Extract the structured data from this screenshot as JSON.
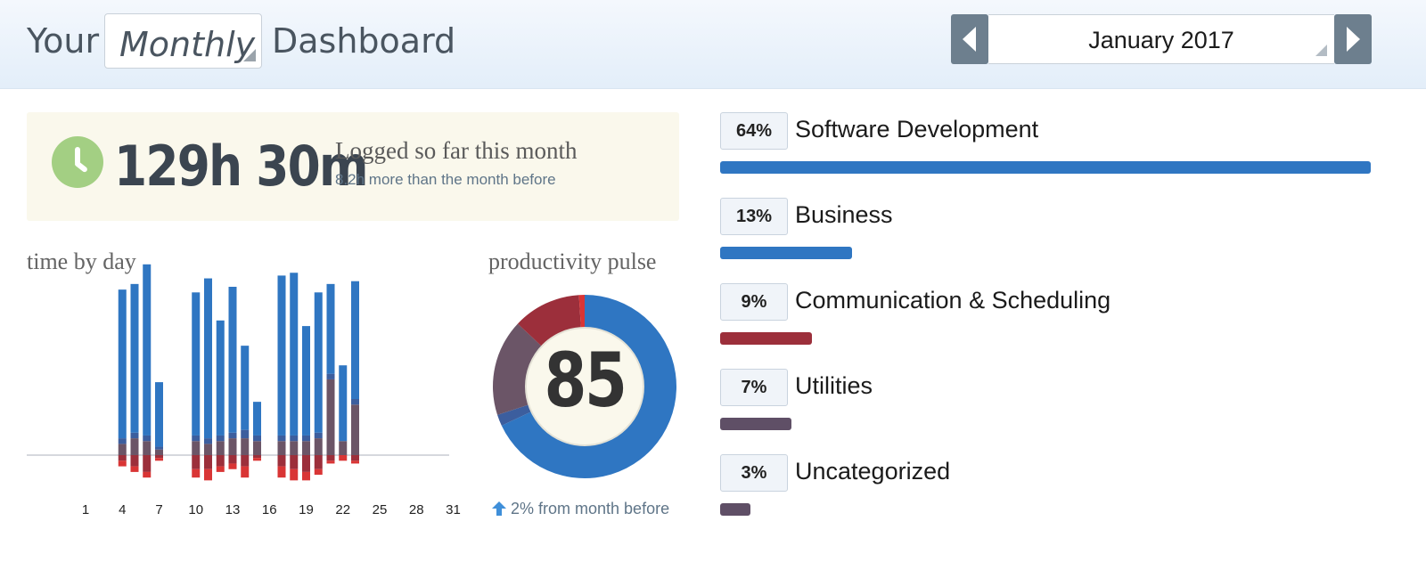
{
  "header": {
    "title_prefix": "Your",
    "period": "Monthly",
    "title_suffix": "Dashboard",
    "month": "January 2017"
  },
  "logged": {
    "total": "129h 30m",
    "label": "Logged so far this month",
    "comparison": "8.2h more than the month before"
  },
  "time_by_day": {
    "title": "time by day"
  },
  "productivity_pulse": {
    "title": "productivity pulse",
    "score": "85",
    "change": "2% from month before"
  },
  "categories": [
    {
      "pct": "64%",
      "name": "Software Development",
      "share": 64,
      "color": "#2f76c2"
    },
    {
      "pct": "13%",
      "name": "Business",
      "share": 13,
      "color": "#2f76c2"
    },
    {
      "pct": "9%",
      "name": "Communication & Scheduling",
      "share": 9,
      "color": "#9c2f3b"
    },
    {
      "pct": "7%",
      "name": "Utilities",
      "share": 7,
      "color": "#5f4f66"
    },
    {
      "pct": "3%",
      "name": "Uncategorized",
      "share": 3,
      "color": "#5f4f66"
    }
  ],
  "colors": {
    "very_productive": "#2f76c2",
    "productive": "#3c5e9e",
    "neutral": "#6b5567",
    "distracting": "#9c2f3b",
    "very_distracting": "#d93535",
    "clock": "#a3cf83"
  },
  "chart_data": [
    {
      "type": "bar",
      "title": "time by day",
      "x_ticks": [
        "1",
        "4",
        "7",
        "10",
        "13",
        "16",
        "19",
        "22",
        "25",
        "28",
        "31"
      ],
      "days": [
        1,
        2,
        3,
        4,
        5,
        6,
        7,
        8,
        9,
        10,
        11,
        12,
        13,
        14,
        15,
        16,
        17,
        18,
        19,
        20,
        21,
        22,
        23,
        24,
        25,
        26,
        27,
        28,
        29,
        30,
        31
      ],
      "series": [
        {
          "values": [
            0,
            0,
            0,
            5.3,
            5.3,
            6.1,
            2.3,
            0,
            0,
            5.1,
            5.7,
            4.1,
            5.2,
            3.0,
            1.2,
            0,
            5.7,
            5.8,
            3.9,
            5.0,
            3.2,
            2.7,
            4.2,
            0,
            0,
            0,
            0,
            0,
            0,
            0,
            0
          ]
        },
        {
          "values": [
            0,
            0,
            0,
            0.2,
            0.2,
            0.2,
            0.1,
            0,
            0,
            0.2,
            0.2,
            0.2,
            0.2,
            0.3,
            0.2,
            0,
            0.2,
            0.2,
            0.2,
            0.2,
            0.2,
            0,
            0.2,
            0,
            0,
            0,
            0,
            0,
            0,
            0,
            0
          ]
        },
        {
          "values": [
            0,
            0,
            0,
            0.4,
            0.6,
            0.5,
            0.2,
            0,
            0,
            0.5,
            0.4,
            0.5,
            0.6,
            0.6,
            0.5,
            0,
            0.5,
            0.5,
            0.5,
            0.6,
            2.7,
            0.5,
            1.8,
            0,
            0,
            0,
            0,
            0,
            0,
            0,
            0
          ]
        },
        {
          "values": [
            0,
            0,
            0,
            0.2,
            0.4,
            0.6,
            0.1,
            0,
            0,
            0.5,
            0.5,
            0.4,
            0.3,
            0.4,
            0.1,
            0,
            0.4,
            0.5,
            0.6,
            0.5,
            0.2,
            0,
            0.2,
            0,
            0,
            0,
            0,
            0,
            0,
            0,
            0
          ]
        },
        {
          "values": [
            0,
            0,
            0,
            0.2,
            0.2,
            0.2,
            0.1,
            0,
            0,
            0.3,
            0.4,
            0.2,
            0.2,
            0.4,
            0.1,
            0,
            0.4,
            0.4,
            0.3,
            0.2,
            0.1,
            0.2,
            0.1,
            0,
            0,
            0,
            0,
            0,
            0,
            0,
            0
          ]
        }
      ]
    },
    {
      "type": "pie",
      "title": "productivity pulse",
      "center_label": "85",
      "slices": [
        {
          "value": 68,
          "color": "#2f76c2"
        },
        {
          "value": 2,
          "color": "#3c5e9e"
        },
        {
          "value": 17,
          "color": "#6b5567"
        },
        {
          "value": 12,
          "color": "#9c2f3b"
        },
        {
          "value": 1,
          "color": "#d93535"
        }
      ]
    }
  ]
}
